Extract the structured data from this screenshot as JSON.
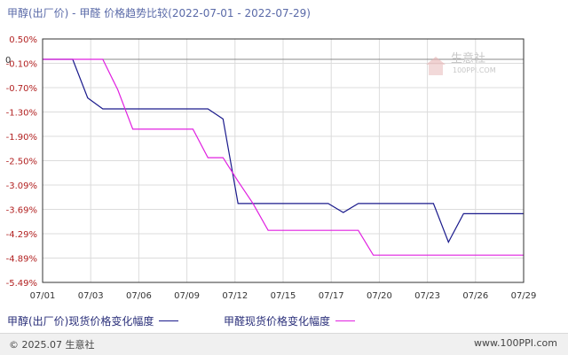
{
  "chart_data": {
    "type": "line",
    "title": "甲醇(出厂价) - 甲醛 价格趋势比较(2022-07-01 - 2022-07-29)",
    "xlabel": "",
    "ylabel": "",
    "x_ticks": [
      "07/01",
      "07/03",
      "07/06",
      "07/09",
      "07/12",
      "07/15",
      "07/17",
      "07/20",
      "07/23",
      "07/26",
      "07/29"
    ],
    "y_ticks": [
      "0.50%",
      "-0.10%",
      "-0.70%",
      "-1.30%",
      "-1.90%",
      "-2.50%",
      "-3.09%",
      "-3.69%",
      "-4.29%",
      "-4.89%",
      "-5.49%"
    ],
    "ylim": [
      -5.49,
      0.5
    ],
    "x_range_days": [
      1,
      29
    ],
    "zero_line_label": "0",
    "grid": true,
    "legend_position": "bottom",
    "series": [
      {
        "name": "甲醇(出厂价)现货价格变化幅度",
        "color": "#1a1a8c",
        "points": [
          [
            1,
            0
          ],
          [
            3,
            0
          ],
          [
            4,
            -0.95
          ],
          [
            5,
            -1.22
          ],
          [
            6,
            -1.22
          ],
          [
            7,
            -1.22
          ],
          [
            8,
            -1.22
          ],
          [
            9,
            -1.22
          ],
          [
            10,
            -1.22
          ],
          [
            11,
            -1.22
          ],
          [
            12,
            -1.22
          ],
          [
            13,
            -1.47
          ],
          [
            14,
            -3.55
          ],
          [
            15,
            -3.55
          ],
          [
            16,
            -3.55
          ],
          [
            17,
            -3.55
          ],
          [
            18,
            -3.55
          ],
          [
            19,
            -3.55
          ],
          [
            20,
            -3.55
          ],
          [
            21,
            -3.77
          ],
          [
            22,
            -3.55
          ],
          [
            23,
            -3.55
          ],
          [
            24,
            -3.55
          ],
          [
            25,
            -3.55
          ],
          [
            26,
            -3.55
          ],
          [
            27,
            -3.55
          ],
          [
            28,
            -4.5
          ],
          [
            29,
            -3.8
          ],
          [
            30,
            -3.8
          ],
          [
            31,
            -3.8
          ],
          [
            32,
            -3.8
          ],
          [
            33,
            -3.8
          ]
        ]
      },
      {
        "name": "甲醛现货价格变化幅度",
        "color": "#e020e0",
        "points": [
          [
            1,
            0
          ],
          [
            5,
            0
          ],
          [
            6,
            -0.75
          ],
          [
            7,
            -1.72
          ],
          [
            8,
            -1.72
          ],
          [
            9,
            -1.72
          ],
          [
            10,
            -1.72
          ],
          [
            11,
            -1.72
          ],
          [
            12,
            -2.42
          ],
          [
            13,
            -2.42
          ],
          [
            14,
            -3.0
          ],
          [
            15,
            -3.55
          ],
          [
            16,
            -4.21
          ],
          [
            17,
            -4.21
          ],
          [
            18,
            -4.21
          ],
          [
            19,
            -4.21
          ],
          [
            20,
            -4.21
          ],
          [
            21,
            -4.21
          ],
          [
            22,
            -4.21
          ],
          [
            23,
            -4.82
          ],
          [
            24,
            -4.82
          ],
          [
            25,
            -4.82
          ],
          [
            26,
            -4.82
          ],
          [
            27,
            -4.82
          ],
          [
            28,
            -4.82
          ],
          [
            29,
            -4.82
          ],
          [
            30,
            -4.82
          ],
          [
            31,
            -4.82
          ],
          [
            32,
            -4.82
          ],
          [
            33,
            -4.82
          ]
        ]
      }
    ]
  },
  "watermark": {
    "name": "生意社",
    "url": "100PPI.COM"
  },
  "footer": {
    "copyright": "© 2025.07 生意社",
    "site": "www.100PPI.com"
  },
  "colors": {
    "plot_border": "#333333",
    "grid": "#dcdcdc",
    "axis_text": "#b22222",
    "x_tick_text": "#333333"
  }
}
